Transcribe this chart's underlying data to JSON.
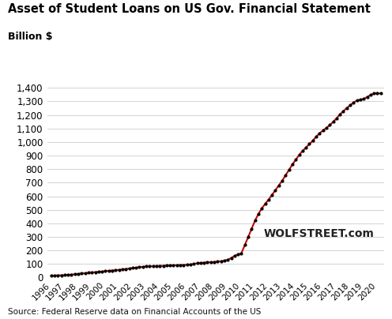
{
  "title": "Asset of Student Loans on US Gov. Financial Statement",
  "ylabel_text": "Billion $",
  "source_text": "Source: Federal Reserve data on Financial Accounts of the US",
  "watermark": "WOLFSTREET.com",
  "background_color": "#ffffff",
  "line_color": "#cc0000",
  "dot_color": "#000000",
  "quarterly_x": [
    1996.0,
    1996.25,
    1996.5,
    1996.75,
    1997.0,
    1997.25,
    1997.5,
    1997.75,
    1998.0,
    1998.25,
    1998.5,
    1998.75,
    1999.0,
    1999.25,
    1999.5,
    1999.75,
    2000.0,
    2000.25,
    2000.5,
    2000.75,
    2001.0,
    2001.25,
    2001.5,
    2001.75,
    2002.0,
    2002.25,
    2002.5,
    2002.75,
    2003.0,
    2003.25,
    2003.5,
    2003.75,
    2004.0,
    2004.25,
    2004.5,
    2004.75,
    2005.0,
    2005.25,
    2005.5,
    2005.75,
    2006.0,
    2006.25,
    2006.5,
    2006.75,
    2007.0,
    2007.25,
    2007.5,
    2007.75,
    2008.0,
    2008.25,
    2008.5,
    2008.75,
    2009.0,
    2009.25,
    2009.5,
    2009.75,
    2010.0,
    2010.25,
    2010.5,
    2010.75,
    2011.0,
    2011.25,
    2011.5,
    2011.75,
    2012.0,
    2012.25,
    2012.5,
    2012.75,
    2013.0,
    2013.25,
    2013.5,
    2013.75,
    2014.0,
    2014.25,
    2014.5,
    2014.75,
    2015.0,
    2015.25,
    2015.5,
    2015.75,
    2016.0,
    2016.25,
    2016.5,
    2016.75,
    2017.0,
    2017.25,
    2017.5,
    2017.75,
    2018.0,
    2018.25,
    2018.5,
    2018.75,
    2019.0,
    2019.25,
    2019.5,
    2019.75,
    2020.0,
    2020.25
  ],
  "values": [
    14,
    15,
    16,
    17,
    18,
    20,
    22,
    24,
    27,
    30,
    32,
    35,
    38,
    40,
    42,
    44,
    47,
    50,
    52,
    54,
    57,
    60,
    63,
    66,
    70,
    73,
    76,
    79,
    82,
    83,
    84,
    85,
    86,
    87,
    88,
    89,
    90,
    91,
    92,
    93,
    94,
    97,
    100,
    105,
    108,
    110,
    112,
    113,
    115,
    118,
    120,
    125,
    130,
    145,
    160,
    170,
    180,
    240,
    300,
    360,
    420,
    470,
    510,
    545,
    575,
    610,
    645,
    680,
    715,
    755,
    795,
    835,
    870,
    905,
    935,
    960,
    985,
    1010,
    1040,
    1065,
    1085,
    1105,
    1125,
    1150,
    1175,
    1205,
    1228,
    1252,
    1272,
    1292,
    1307,
    1313,
    1318,
    1333,
    1348,
    1358,
    1362,
    1358
  ],
  "yticks": [
    0,
    100,
    200,
    300,
    400,
    500,
    600,
    700,
    800,
    900,
    1000,
    1100,
    1200,
    1300,
    1400
  ],
  "ylim": [
    0,
    1460
  ],
  "xlim": [
    1995.7,
    2020.5
  ]
}
